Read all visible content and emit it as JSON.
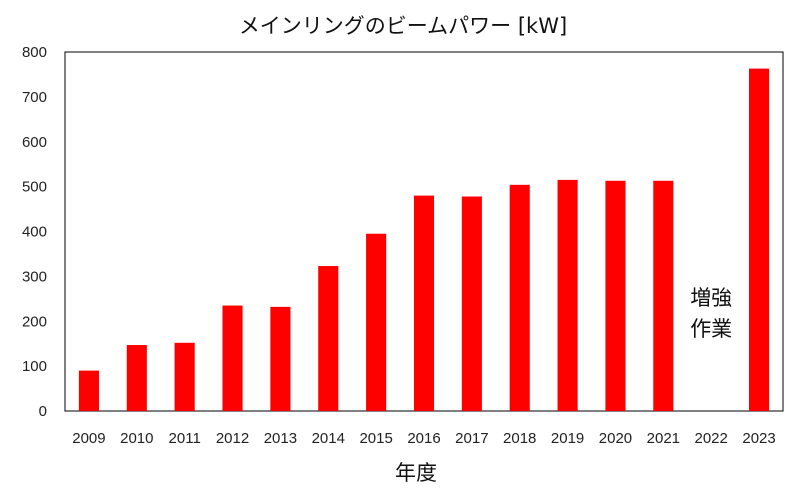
{
  "chart_data": {
    "type": "bar",
    "title": "メインリングのビームパワー [kW]",
    "xlabel": "年度",
    "ylabel": "",
    "ylim": [
      0,
      800
    ],
    "yticks": [
      0,
      100,
      200,
      300,
      400,
      500,
      600,
      700,
      800
    ],
    "grid": false,
    "legend": "none",
    "categories": [
      "2009",
      "2010",
      "2011",
      "2012",
      "2013",
      "2014",
      "2015",
      "2016",
      "2017",
      "2018",
      "2019",
      "2020",
      "2021",
      "2022",
      "2023"
    ],
    "series": [
      {
        "values": [
          90,
          147,
          152,
          235,
          232,
          323,
          395,
          480,
          478,
          504,
          515,
          513,
          513,
          null,
          763
        ]
      }
    ],
    "annotations": [
      {
        "category": "2022",
        "text_lines": [
          "増強",
          "作業"
        ]
      }
    ],
    "colors": {
      "bar": "#ff0000",
      "frame": "#000000",
      "text": "#111111"
    }
  }
}
